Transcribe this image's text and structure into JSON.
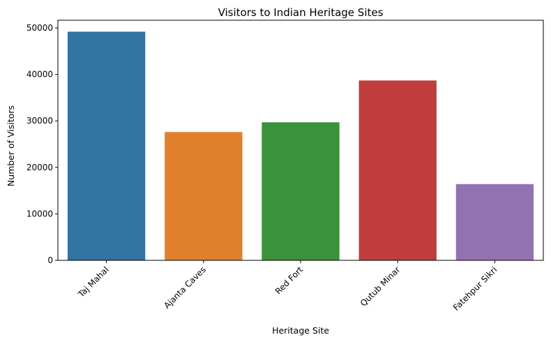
{
  "chart_data": {
    "type": "bar",
    "title": "Visitors to Indian Heritage Sites",
    "xlabel": "Heritage Site",
    "ylabel": "Number of Visitors",
    "categories": [
      "Taj Mahal",
      "Ajanta Caves",
      "Red Fort",
      "Qutub Minar",
      "Fatehpur Sikri"
    ],
    "values": [
      49200,
      27600,
      29700,
      38700,
      16400
    ],
    "colors": [
      "#3274a1",
      "#e1812c",
      "#3a923a",
      "#c03d3e",
      "#9372b2"
    ],
    "ylim": [
      0,
      51660
    ],
    "yticks": [
      0,
      10000,
      20000,
      30000,
      40000,
      50000
    ],
    "ytick_labels": [
      "0",
      "10000",
      "20000",
      "30000",
      "40000",
      "50000"
    ],
    "xtick_rotation": 45,
    "grid": false,
    "legend": "none"
  }
}
